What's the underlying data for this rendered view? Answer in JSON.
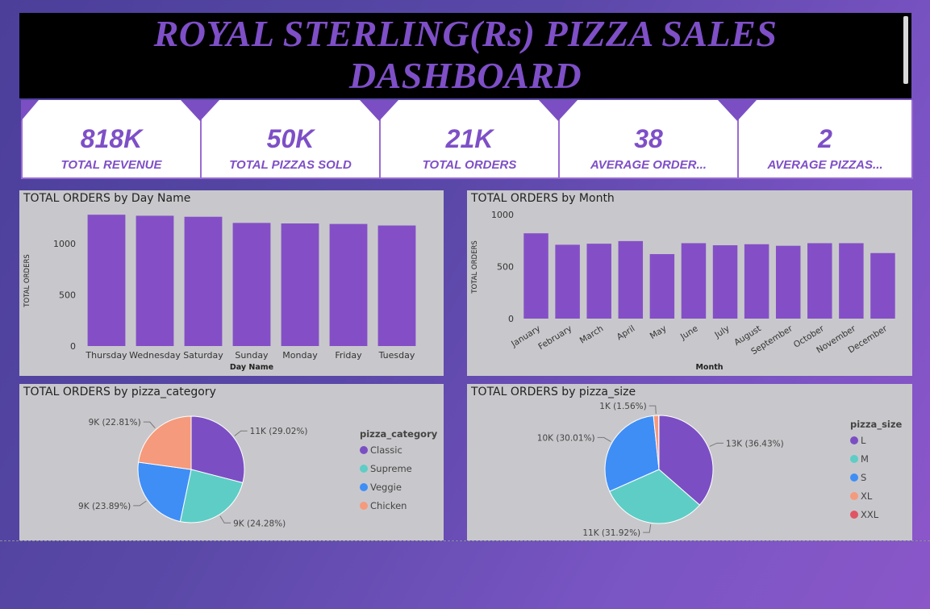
{
  "header": {
    "title_line1": "ROYAL STERLING(Rs) PIZZA SALES",
    "title_line2": "DASHBOARD"
  },
  "kpis": [
    {
      "value": "818K",
      "label": "TOTAL REVENUE"
    },
    {
      "value": "50K",
      "label": "TOTAL PIZZAS SOLD"
    },
    {
      "value": "21K",
      "label": "TOTAL ORDERS"
    },
    {
      "value": "38",
      "label": "AVERAGE ORDER..."
    },
    {
      "value": "2",
      "label": "AVERAGE PIZZAS..."
    }
  ],
  "colors": {
    "accent": "#7e4fc7",
    "bar": "#844fc6",
    "panel": "#c8c8cc"
  },
  "chart_data": [
    {
      "type": "bar",
      "title": "TOTAL ORDERS by Day Name",
      "xlabel": "Day Name",
      "ylabel": "TOTAL ORDERS",
      "ylim": [
        0,
        1250
      ],
      "yticks": [
        "0",
        "500",
        "1000"
      ],
      "yticks_values": [
        0,
        500,
        1000
      ],
      "categories": [
        "Thursday",
        "Wednesday",
        "Saturday",
        "Sunday",
        "Monday",
        "Friday",
        "Tuesday"
      ],
      "values": [
        1280,
        1270,
        1260,
        1200,
        1195,
        1190,
        1175
      ]
    },
    {
      "type": "bar",
      "title": "TOTAL ORDERS by Month",
      "xlabel": "Month",
      "ylabel": "TOTAL ORDERS",
      "ylim": [
        0,
        1000
      ],
      "yticks": [
        "0",
        "500",
        "1000"
      ],
      "yticks_values": [
        0,
        500,
        1000
      ],
      "categories": [
        "January",
        "February",
        "March",
        "April",
        "May",
        "June",
        "July",
        "August",
        "September",
        "October",
        "November",
        "December"
      ],
      "values": [
        820,
        710,
        720,
        745,
        620,
        725,
        705,
        715,
        700,
        725,
        725,
        630
      ]
    },
    {
      "type": "pie",
      "title": "TOTAL ORDERS by pizza_category",
      "legend_title": "pizza_category",
      "legend_position": "right",
      "slices": [
        {
          "name": "Classic",
          "percent": 29.02,
          "label": "11K (29.02%)",
          "color": "#7b4fc3"
        },
        {
          "name": "Supreme",
          "percent": 24.28,
          "label": "9K (24.28%)",
          "color": "#5ecdc6"
        },
        {
          "name": "Veggie",
          "percent": 23.89,
          "label": "9K (23.89%)",
          "color": "#3f8ef6"
        },
        {
          "name": "Chicken",
          "percent": 22.81,
          "label": "9K (22.81%)",
          "color": "#f59a7c"
        }
      ]
    },
    {
      "type": "pie",
      "title": "TOTAL ORDERS by pizza_size",
      "legend_title": "pizza_size",
      "legend_position": "right",
      "slices": [
        {
          "name": "L",
          "percent": 36.43,
          "label": "13K (36.43%)",
          "color": "#7b4fc3"
        },
        {
          "name": "M",
          "percent": 31.92,
          "label": "11K (31.92%)",
          "color": "#5ecdc6"
        },
        {
          "name": "S",
          "percent": 30.01,
          "label": "10K (30.01%)",
          "color": "#3f8ef6"
        },
        {
          "name": "XL",
          "percent": 1.56,
          "label": "1K (1.56%)",
          "color": "#f59a7c"
        },
        {
          "name": "XXL",
          "percent": 0.08,
          "label": "",
          "color": "#e05563"
        }
      ]
    }
  ]
}
